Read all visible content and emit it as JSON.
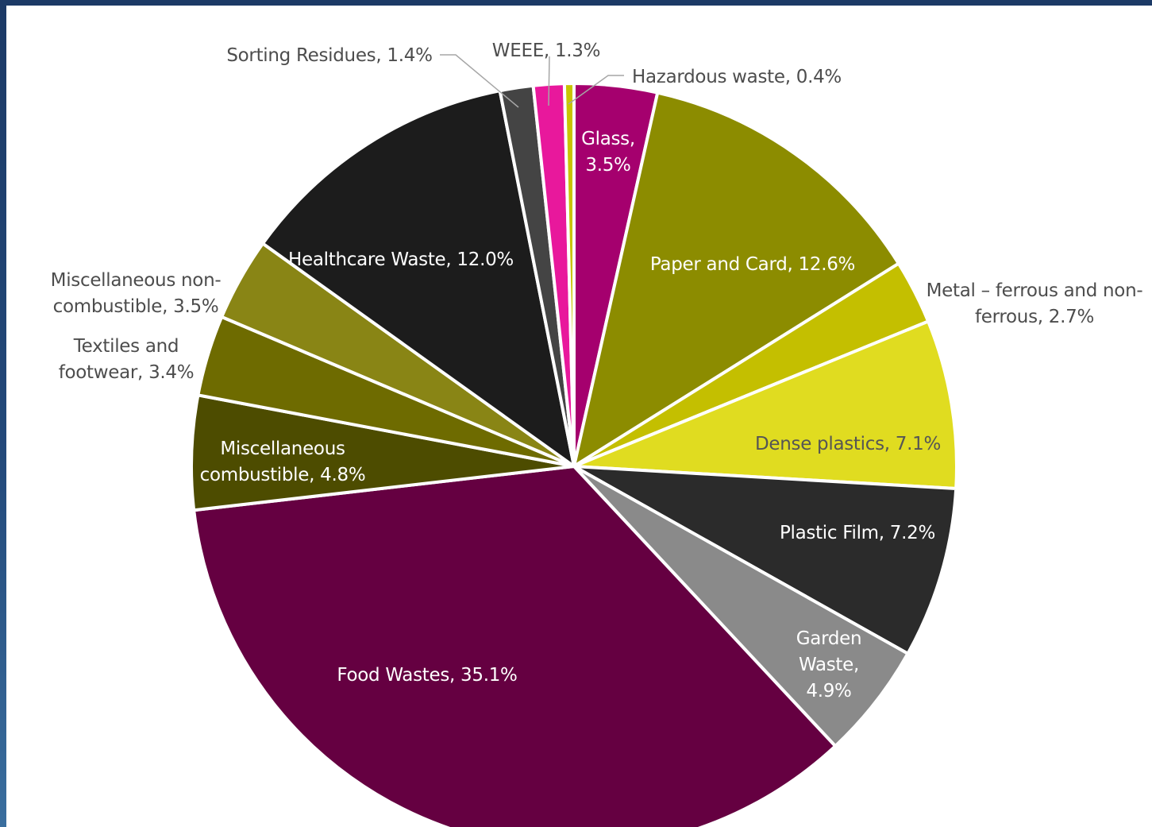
{
  "chart_data": {
    "type": "pie",
    "start_angle_deg": 0,
    "direction": "clockwise",
    "slice_border_color": "#ffffff",
    "slices": [
      {
        "label": "Glass, 3.5%",
        "lines": [
          "Glass,",
          "3.5%"
        ],
        "value": 3.5,
        "color": "#a5006e",
        "label_color": "#ffffff"
      },
      {
        "label": "Paper and Card, 12.6%",
        "lines": [
          "Paper and Card, 12.6%"
        ],
        "value": 12.6,
        "color": "#8c8c00",
        "label_color": "#ffffff"
      },
      {
        "label": "Metal – ferrous and non-ferrous, 2.7%",
        "lines": [
          "Metal – ferrous and non-",
          "ferrous, 2.7%"
        ],
        "value": 2.7,
        "color": "#c4bf00",
        "label_color": "#4d4d4d"
      },
      {
        "label": "Dense plastics, 7.1%",
        "lines": [
          "Dense plastics, 7.1%"
        ],
        "value": 7.1,
        "color": "#e0dc20",
        "label_color": "#555555"
      },
      {
        "label": "Plastic Film, 7.2%",
        "lines": [
          "Plastic Film, 7.2%"
        ],
        "value": 7.2,
        "color": "#2b2b2b",
        "label_color": "#ffffff"
      },
      {
        "label": "Garden Waste, 4.9%",
        "lines": [
          "Garden",
          "Waste,",
          "4.9%"
        ],
        "value": 4.9,
        "color": "#8a8a8a",
        "label_color": "#ffffff"
      },
      {
        "label": "Food Wastes, 35.1%",
        "lines": [
          "Food Wastes, 35.1%"
        ],
        "value": 35.1,
        "color": "#650041",
        "label_color": "#ffffff"
      },
      {
        "label": "Miscellaneous combustible, 4.8%",
        "lines": [
          "Miscellaneous",
          "combustible, 4.8%"
        ],
        "value": 4.8,
        "color": "#4d4c00",
        "label_color": "#ffffff"
      },
      {
        "label": "Textiles and footwear, 3.4%",
        "lines": [
          "Textiles and",
          "footwear, 3.4%"
        ],
        "value": 3.4,
        "color": "#6e6b00",
        "label_color": "#4d4d4d"
      },
      {
        "label": "Miscellaneous non-combustible, 3.5%",
        "lines": [
          "Miscellaneous non-",
          "combustible, 3.5%"
        ],
        "value": 3.5,
        "color": "#898515",
        "label_color": "#4d4d4d"
      },
      {
        "label": "Healthcare Waste, 12.0%",
        "lines": [
          "Healthcare Waste, 12.0%"
        ],
        "value": 12.0,
        "color": "#1c1c1c",
        "label_color": "#ffffff"
      },
      {
        "label": "Sorting Residues, 1.4%",
        "lines": [
          "Sorting Residues, 1.4%"
        ],
        "value": 1.4,
        "color": "#444444",
        "label_color": "#4d4d4d"
      },
      {
        "label": "WEEE, 1.3%",
        "lines": [
          "WEEE, 1.3%"
        ],
        "value": 1.3,
        "color": "#e8189c",
        "label_color": "#4d4d4d"
      },
      {
        "label": "Hazardous waste, 0.4%",
        "lines": [
          "Hazardous waste, 0.4%"
        ],
        "value": 0.4,
        "color": "#c8c400",
        "label_color": "#4d4d4d"
      }
    ]
  }
}
